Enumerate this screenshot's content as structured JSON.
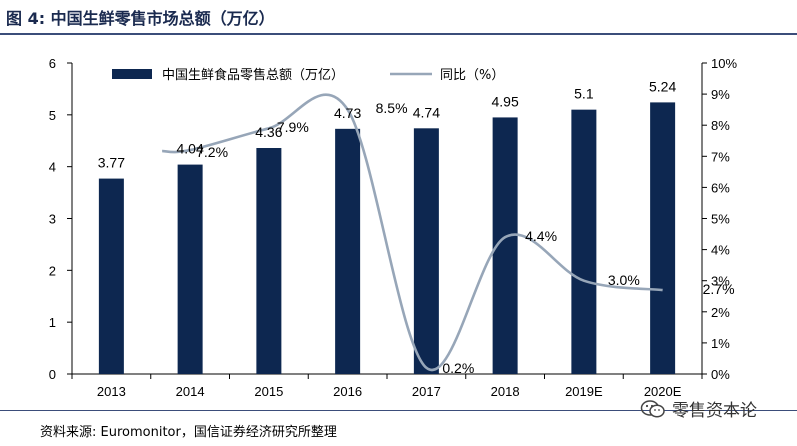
{
  "figure": {
    "title": "图 4:  中国生鲜零售市场总额（万亿）",
    "source": "资料来源: Euromonitor，国信证券经济研究所整理",
    "watermark": "零售资本论"
  },
  "colors": {
    "bar": "#0d2750",
    "line": "#97a6b8",
    "rule": "#3b4d7a"
  },
  "chart_data": {
    "type": "bar",
    "categories": [
      "2013",
      "2014",
      "2015",
      "2016",
      "2017",
      "2018",
      "2019E",
      "2020E"
    ],
    "series": [
      {
        "name": "中国生鲜食品零售总额（万亿）",
        "type": "bar",
        "axis": "left",
        "values": [
          3.77,
          4.04,
          4.36,
          4.73,
          4.74,
          4.95,
          5.1,
          5.24
        ],
        "labels": [
          "3.77",
          "4.04",
          "4.36",
          "4.73",
          "4.74",
          "4.95",
          "5.1",
          "5.24"
        ]
      },
      {
        "name": "同比（%）",
        "type": "line",
        "axis": "right",
        "values": [
          null,
          7.2,
          7.9,
          8.5,
          0.2,
          4.4,
          3.0,
          2.7
        ],
        "labels": [
          "",
          "7.2%",
          "7.9%",
          "8.5%",
          "0.2%",
          "4.4%",
          "3.0%",
          "2.7%"
        ]
      }
    ],
    "left_axis": {
      "min": 0,
      "max": 6,
      "ticks": [
        "0",
        "1",
        "2",
        "3",
        "4",
        "5",
        "6"
      ]
    },
    "right_axis": {
      "min": 0,
      "max": 10,
      "ticks": [
        "0%",
        "1%",
        "2%",
        "3%",
        "4%",
        "5%",
        "6%",
        "7%",
        "8%",
        "9%",
        "10%"
      ]
    },
    "grid": false,
    "legend": "top"
  }
}
